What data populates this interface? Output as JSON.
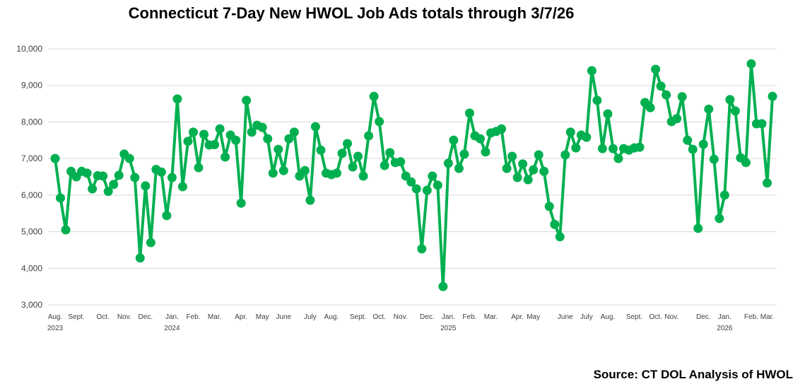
{
  "chart_data": {
    "type": "line",
    "title": "Connecticut 7-Day New HWOL Job Ads totals through 3/7/26",
    "source": "Source: CT DOL Analysis of HWOL",
    "categories": [
      "Aug.",
      null,
      null,
      null,
      "Sept.",
      null,
      null,
      null,
      null,
      "Oct.",
      null,
      null,
      null,
      "Nov.",
      null,
      null,
      null,
      "Dec.",
      null,
      null,
      null,
      null,
      "Jan.",
      null,
      null,
      null,
      "Feb.",
      null,
      null,
      null,
      "Mar.",
      null,
      null,
      null,
      null,
      "Apr.",
      null,
      null,
      null,
      "May",
      null,
      null,
      null,
      "June",
      null,
      null,
      null,
      null,
      "July",
      null,
      null,
      null,
      "Aug.",
      null,
      null,
      null,
      null,
      "Sept.",
      null,
      null,
      null,
      "Oct.",
      null,
      null,
      null,
      "Nov.",
      null,
      null,
      null,
      null,
      "Dec.",
      null,
      null,
      null,
      "Jan.",
      null,
      null,
      null,
      "Feb.",
      null,
      null,
      null,
      "Mar.",
      null,
      null,
      null,
      null,
      "Apr.",
      null,
      null,
      "May",
      null,
      null,
      null,
      null,
      null,
      "June",
      null,
      null,
      null,
      "July",
      null,
      null,
      null,
      "Aug.",
      null,
      null,
      null,
      null,
      "Sept.",
      null,
      null,
      null,
      "Oct.",
      null,
      null,
      "Nov.",
      null,
      null,
      null,
      null,
      null,
      "Dec.",
      null,
      null,
      null,
      "Jan.",
      null,
      null,
      null,
      null,
      "Feb.",
      null,
      null,
      "Mar.",
      null
    ],
    "x_year_labels": [
      "2023",
      null,
      null,
      null,
      null,
      null,
      null,
      null,
      null,
      null,
      null,
      null,
      null,
      null,
      null,
      null,
      null,
      null,
      null,
      null,
      null,
      null,
      "2024",
      null,
      null,
      null,
      null,
      null,
      null,
      null,
      null,
      null,
      null,
      null,
      null,
      null,
      null,
      null,
      null,
      null,
      null,
      null,
      null,
      null,
      null,
      null,
      null,
      null,
      null,
      null,
      null,
      null,
      null,
      null,
      null,
      null,
      null,
      null,
      null,
      null,
      null,
      null,
      null,
      null,
      null,
      null,
      null,
      null,
      null,
      null,
      null,
      null,
      null,
      null,
      "2025",
      null,
      null,
      null,
      null,
      null,
      null,
      null,
      null,
      null,
      null,
      null,
      null,
      null,
      null,
      null,
      null,
      null,
      null,
      null,
      null,
      null,
      null,
      null,
      null,
      null,
      null,
      null,
      null,
      null,
      null,
      null,
      null,
      null,
      null,
      null,
      null,
      null,
      null,
      null,
      null,
      null,
      null,
      null,
      null,
      null,
      null,
      null,
      null,
      null,
      null,
      null,
      "2026",
      null,
      null,
      null,
      null,
      null,
      null,
      null,
      null,
      null
    ],
    "series": [
      {
        "name": "7-Day New HWOL Job Ads",
        "color": "#00b050",
        "values": [
          7000,
          5920,
          5050,
          6650,
          6500,
          6650,
          6600,
          6170,
          6530,
          6520,
          6100,
          6290,
          6540,
          7120,
          7000,
          6480,
          4280,
          6250,
          4700,
          6700,
          6630,
          5440,
          6480,
          8630,
          6230,
          7470,
          7720,
          6750,
          7660,
          7370,
          7380,
          7810,
          7040,
          7640,
          7500,
          5780,
          8590,
          7720,
          7910,
          7850,
          7540,
          6600,
          7250,
          6670,
          7540,
          7720,
          6520,
          6670,
          5860,
          7870,
          7230,
          6600,
          6560,
          6600,
          7140,
          7410,
          6770,
          7060,
          6520,
          7620,
          8700,
          8010,
          6810,
          7160,
          6890,
          6910,
          6520,
          6360,
          6170,
          4530,
          6130,
          6520,
          6270,
          3500,
          6870,
          7500,
          6730,
          7120,
          8240,
          7620,
          7540,
          7180,
          7700,
          7740,
          7810,
          6730,
          7060,
          6480,
          6850,
          6420,
          6690,
          7100,
          6650,
          5690,
          5200,
          4860,
          7100,
          7720,
          7290,
          7640,
          7580,
          9400,
          8590,
          7270,
          8220,
          7270,
          7000,
          7270,
          7230,
          7290,
          7310,
          8530,
          8390,
          9440,
          8980,
          8740,
          8010,
          8090,
          8690,
          7500,
          7250,
          5090,
          7390,
          8350,
          6980,
          5360,
          6000,
          8610,
          8300,
          7020,
          6890,
          9590,
          7950,
          7950,
          6330,
          8700
        ]
      }
    ],
    "ylim": [
      3000,
      10000
    ],
    "yticks": [
      {
        "value": 3000,
        "label": "3,000"
      },
      {
        "value": 4000,
        "label": "4,000"
      },
      {
        "value": 5000,
        "label": "5,000"
      },
      {
        "value": 6000,
        "label": "6,000"
      },
      {
        "value": 7000,
        "label": "7,000"
      },
      {
        "value": 8000,
        "label": "8,000"
      },
      {
        "value": 9000,
        "label": "9,000"
      },
      {
        "value": 10000,
        "label": "10,000"
      }
    ],
    "grid": true
  }
}
